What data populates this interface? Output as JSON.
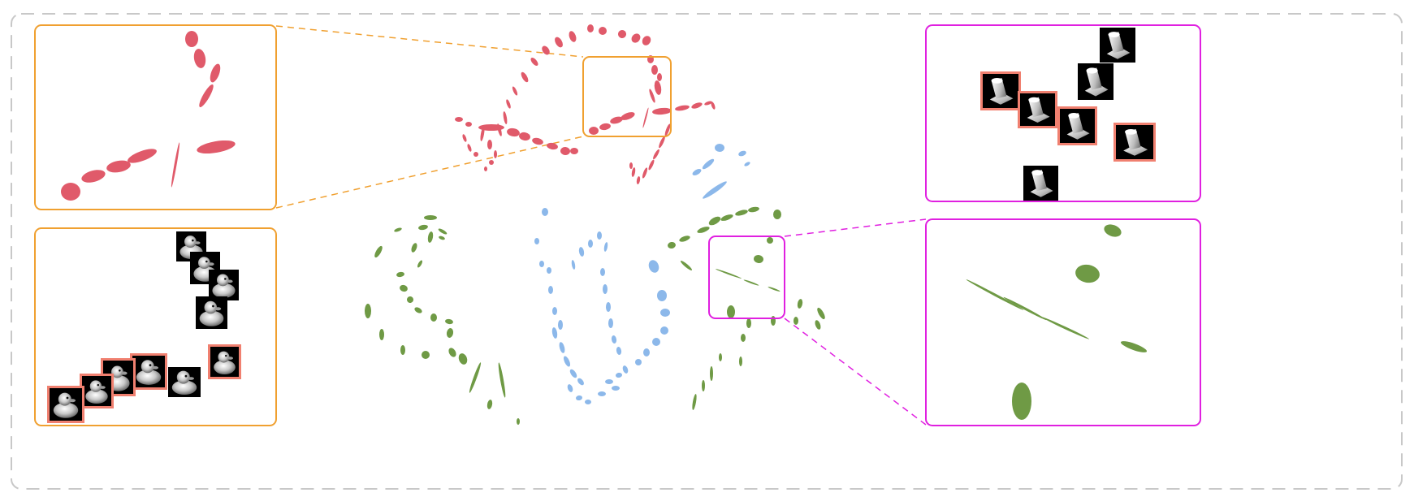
{
  "colors": {
    "page_background": "#ffffff",
    "outer_border": "#c8c8c8",
    "embedding_red": "#e05a6a",
    "embedding_blue": "#8cb8ea",
    "embedding_green": "#6f9a45",
    "zoom_orange": "#f0a030",
    "zoom_magenta": "#e020e0",
    "highlight_frame": "#f08070",
    "thumbnail_background": "#000000"
  },
  "clusters": [
    {
      "name": "red",
      "object": "toy-duck-views",
      "zoom_box": "orange"
    },
    {
      "name": "blue",
      "object": "unlabeled"
    },
    {
      "name": "green",
      "object": "block-views",
      "zoom_box": "magenta"
    }
  ],
  "panels": [
    {
      "name": "red-cluster-zoom",
      "content": "ellipses",
      "frame_color": "orange"
    },
    {
      "name": "duck-thumbnails",
      "content": "images",
      "frame_color": "orange",
      "thumbnail_count": 10,
      "highlighted_count": 6
    },
    {
      "name": "block-thumbnails",
      "content": "images",
      "frame_color": "magenta",
      "thumbnail_count": 7,
      "highlighted_count": 4
    },
    {
      "name": "green-cluster-zoom",
      "content": "ellipses",
      "frame_color": "magenta"
    }
  ]
}
